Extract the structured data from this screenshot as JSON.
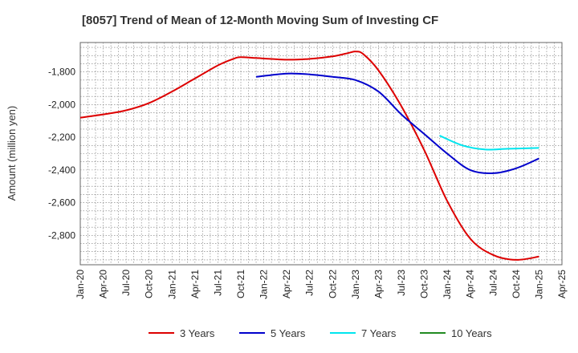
{
  "chart_data": {
    "type": "line",
    "title": "[8057]  Trend of Mean of 12-Month Moving Sum of Investing CF",
    "xlabel": "",
    "ylabel": "Amount (million yen)",
    "ylim": [
      -2980,
      -1620
    ],
    "yticks": [
      -1800,
      -2000,
      -2200,
      -2400,
      -2600,
      -2800
    ],
    "ytick_labels": [
      "-1,800",
      "-2,000",
      "-2,200",
      "-2,400",
      "-2,600",
      "-2,800"
    ],
    "x_range": [
      "Jan-20",
      "Apr-25"
    ],
    "xticks": [
      "Jan-20",
      "Apr-20",
      "Jul-20",
      "Oct-20",
      "Jan-21",
      "Apr-21",
      "Jul-21",
      "Oct-21",
      "Jan-22",
      "Apr-22",
      "Jul-22",
      "Oct-22",
      "Jan-23",
      "Apr-23",
      "Jul-23",
      "Oct-23",
      "Jan-24",
      "Apr-24",
      "Jul-24",
      "Oct-24",
      "Jan-25",
      "Apr-25"
    ],
    "grid": true,
    "legend_position": "bottom",
    "series": [
      {
        "name": "3 Years",
        "color": "#dd0000",
        "x": [
          "Jan-20",
          "Apr-20",
          "Jul-20",
          "Oct-20",
          "Jan-21",
          "Apr-21",
          "Jul-21",
          "Sep-21",
          "Oct-21",
          "Dec-21",
          "Apr-22",
          "Jul-22",
          "Oct-22",
          "Dec-22",
          "Jan-23",
          "Feb-23",
          "Apr-23",
          "Jul-23",
          "Oct-23",
          "Jan-24",
          "Apr-24",
          "Jul-24",
          "Oct-24",
          "Jan-25"
        ],
        "values": [
          -2080,
          -2060,
          -2035,
          -1990,
          -1920,
          -1840,
          -1760,
          -1720,
          -1710,
          -1715,
          -1725,
          -1720,
          -1705,
          -1685,
          -1675,
          -1690,
          -1790,
          -2010,
          -2280,
          -2590,
          -2820,
          -2920,
          -2950,
          -2930
        ]
      },
      {
        "name": "5 Years",
        "color": "#0000cc",
        "x": [
          "Dec-21",
          "Apr-22",
          "Jul-22",
          "Oct-22",
          "Jan-23",
          "Apr-23",
          "Jul-23",
          "Oct-23",
          "Jan-24",
          "Apr-24",
          "Jul-24",
          "Oct-24",
          "Jan-25"
        ],
        "values": [
          -1830,
          -1810,
          -1815,
          -1830,
          -1850,
          -1920,
          -2060,
          -2180,
          -2300,
          -2400,
          -2420,
          -2390,
          -2330
        ]
      },
      {
        "name": "7 Years",
        "color": "#00e5ee",
        "x": [
          "Dec-23",
          "Mar-24",
          "Jun-24",
          "Sep-24",
          "Jan-25"
        ],
        "values": [
          -2190,
          -2250,
          -2275,
          -2270,
          -2265
        ]
      },
      {
        "name": "10 Years",
        "color": "#228b22",
        "x": [],
        "values": []
      }
    ]
  }
}
